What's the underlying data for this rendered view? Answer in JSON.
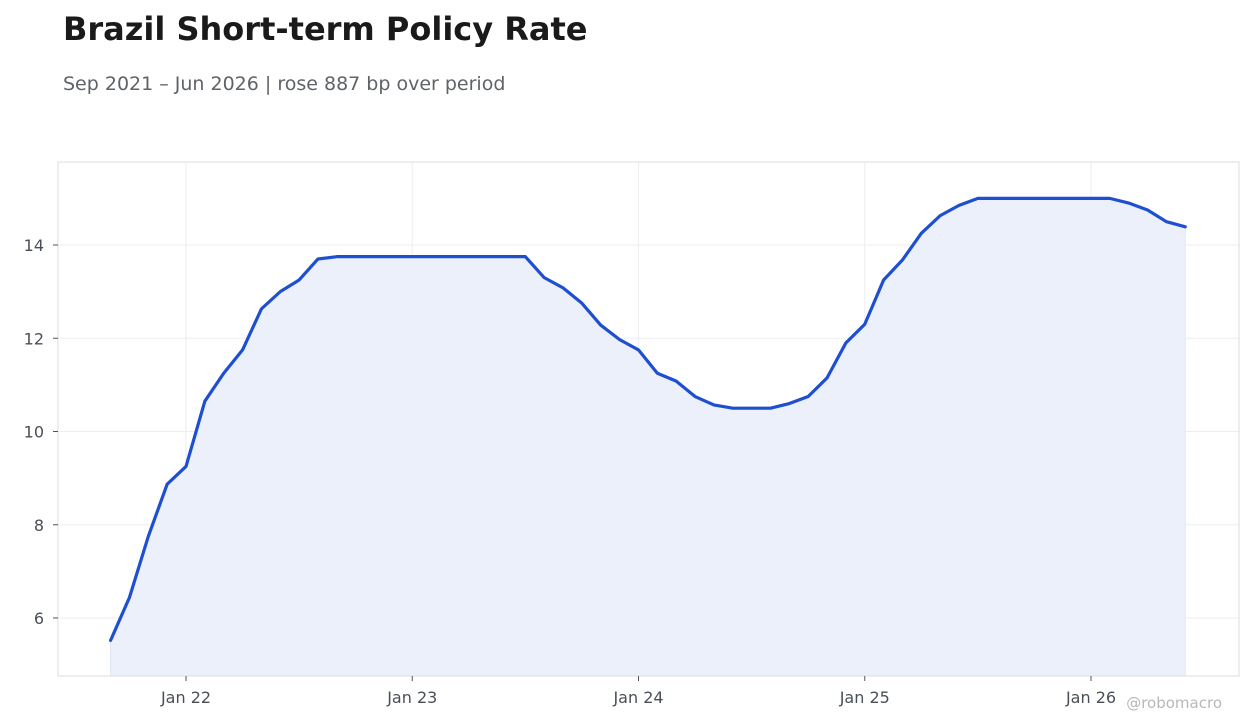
{
  "header": {
    "title": "Brazil Short-term Policy Rate",
    "subtitle": "Sep 2021 – Jun 2026 | rose 887 bp over period"
  },
  "watermark": "@robomacro",
  "colors": {
    "line": "#1f4fd1",
    "fill": "#ecf0fb",
    "grid": "#eceef1",
    "frame": "#dcdcdc"
  },
  "chart_data": {
    "type": "area",
    "title": "Brazil Short-term Policy Rate",
    "subtitle": "Sep 2021 – Jun 2026 | rose 887 bp over period",
    "xlabel": "",
    "ylabel": "",
    "x_start": "2021-09",
    "x_end": "2026-06",
    "xlim": [
      "2021-06",
      "2026-07"
    ],
    "ylim": [
      4.75,
      15.75
    ],
    "yticks": [
      6,
      8,
      10,
      12,
      14
    ],
    "xticks": [
      {
        "date": "2022-01",
        "label": "Jan 22"
      },
      {
        "date": "2023-01",
        "label": "Jan 23"
      },
      {
        "date": "2024-01",
        "label": "Jan 24"
      },
      {
        "date": "2025-01",
        "label": "Jan 25"
      },
      {
        "date": "2026-01",
        "label": "Jan 26"
      }
    ],
    "grid": true,
    "series": [
      {
        "dates": [
          "2021-09",
          "2021-10",
          "2021-11",
          "2021-12",
          "2022-01",
          "2022-02",
          "2022-03",
          "2022-04",
          "2022-05",
          "2022-06",
          "2022-07",
          "2022-08",
          "2022-09",
          "2022-10",
          "2022-11",
          "2022-12",
          "2023-01",
          "2023-02",
          "2023-03",
          "2023-04",
          "2023-05",
          "2023-06",
          "2023-07",
          "2023-08",
          "2023-09",
          "2023-10",
          "2023-11",
          "2023-12",
          "2024-01",
          "2024-02",
          "2024-03",
          "2024-04",
          "2024-05",
          "2024-06",
          "2024-07",
          "2024-08",
          "2024-09",
          "2024-10",
          "2024-11",
          "2024-12",
          "2025-01",
          "2025-02",
          "2025-03",
          "2025-04",
          "2025-05",
          "2025-06",
          "2025-07",
          "2025-08",
          "2025-09",
          "2025-10",
          "2025-11",
          "2025-12",
          "2026-01",
          "2026-02",
          "2026-03",
          "2026-04",
          "2026-05",
          "2026-06"
        ],
        "values": [
          5.52,
          6.44,
          7.75,
          8.87,
          9.25,
          10.65,
          11.25,
          11.75,
          12.63,
          13.0,
          13.25,
          13.7,
          13.75,
          13.75,
          13.75,
          13.75,
          13.75,
          13.75,
          13.75,
          13.75,
          13.75,
          13.75,
          13.75,
          13.3,
          13.08,
          12.75,
          12.28,
          11.97,
          11.75,
          11.25,
          11.08,
          10.75,
          10.57,
          10.5,
          10.5,
          10.5,
          10.6,
          10.75,
          11.15,
          11.9,
          12.3,
          13.25,
          13.68,
          14.25,
          14.63,
          14.85,
          15.0,
          15.0,
          15.0,
          15.0,
          15.0,
          15.0,
          15.0,
          15.0,
          14.9,
          14.75,
          14.5,
          14.39
        ]
      }
    ]
  }
}
